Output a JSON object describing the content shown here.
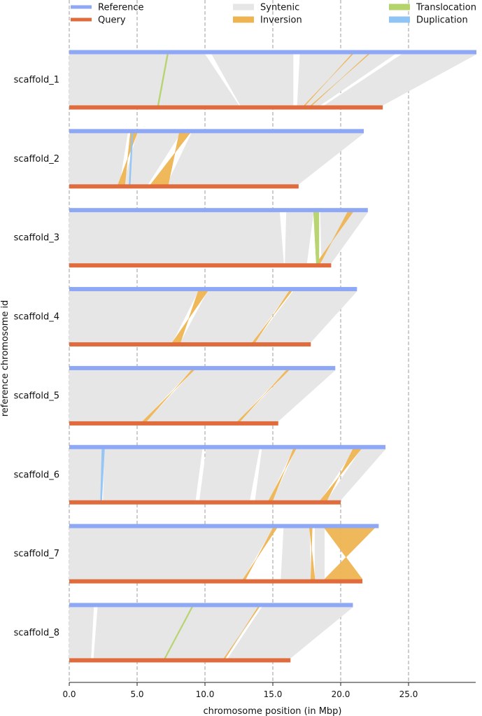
{
  "chart_data": {
    "type": "synteny",
    "xlabel": "chromosome position (in Mbp)",
    "ylabel": "reference chromosome id",
    "xlim": [
      0,
      30
    ],
    "x_ticks": [
      0,
      5,
      10,
      15,
      20,
      25
    ],
    "x_tick_labels": [
      "0.0",
      "5.0",
      "10.0",
      "15.0",
      "20.0",
      "25.0"
    ],
    "grid": "vertical dashed",
    "legend": {
      "placement": "top",
      "items": [
        {
          "label": "Reference",
          "color": "#8fa8f5",
          "kind": "line"
        },
        {
          "label": "Query",
          "color": "#e06b3c",
          "kind": "line"
        },
        {
          "label": "Syntenic",
          "color": "#e6e6e6",
          "kind": "patch"
        },
        {
          "label": "Inversion",
          "color": "#eeb452",
          "kind": "patch"
        },
        {
          "label": "Translocation",
          "color": "#b5d36b",
          "kind": "patch"
        },
        {
          "label": "Duplication",
          "color": "#90c4f5",
          "kind": "patch"
        }
      ]
    },
    "chromosomes": [
      {
        "id": "scaffold_1",
        "ref_length": 30.0,
        "query_length": 23.1,
        "syntenic": [
          [
            0,
            10,
            0,
            12.5
          ],
          [
            10.5,
            16.5,
            12.6,
            16.5
          ],
          [
            17,
            24,
            16.8,
            18.5
          ],
          [
            24.5,
            30.0,
            18.8,
            23.1
          ]
        ],
        "inversions": [
          [
            20.8,
            20.9,
            17.3,
            17.4
          ],
          [
            22.0,
            22.1,
            17.8,
            17.9
          ]
        ],
        "translocations": [
          [
            7.2,
            7.3,
            6.5,
            6.6
          ]
        ],
        "duplications": []
      },
      {
        "id": "scaffold_2",
        "ref_length": 21.7,
        "query_length": 16.9,
        "syntenic": [
          [
            0,
            4.3,
            0,
            3.7
          ],
          [
            5.0,
            8.2,
            4.0,
            5.8
          ],
          [
            9.0,
            21.7,
            7.2,
            16.9
          ]
        ],
        "inversions": [
          [
            4.5,
            5.0,
            3.6,
            4.1
          ],
          [
            8.1,
            8.9,
            6.0,
            7.3
          ]
        ],
        "translocations": [],
        "duplications": [
          [
            4.6,
            4.7,
            4.4,
            4.5
          ]
        ]
      },
      {
        "id": "scaffold_3",
        "ref_length": 22.0,
        "query_length": 19.3,
        "syntenic": [
          [
            0,
            15.5,
            0,
            15.8
          ],
          [
            16.0,
            18.0,
            15.9,
            17.5
          ],
          [
            18.5,
            22.0,
            18.6,
            19.3
          ]
        ],
        "inversions": [
          [
            20.5,
            20.9,
            18.2,
            18.5
          ]
        ],
        "translocations": [
          [
            18.0,
            18.4,
            18.2,
            18.4
          ]
        ],
        "duplications": []
      },
      {
        "id": "scaffold_4",
        "ref_length": 21.2,
        "query_length": 17.8,
        "syntenic": [
          [
            0,
            9.5,
            0,
            7.6
          ],
          [
            10.2,
            16.2,
            8.2,
            13.5
          ],
          [
            16.5,
            21.2,
            13.7,
            17.8
          ]
        ],
        "inversions": [
          [
            9.5,
            10.2,
            7.6,
            8.2
          ],
          [
            16.2,
            16.4,
            13.5,
            13.7
          ]
        ],
        "translocations": [],
        "duplications": []
      },
      {
        "id": "scaffold_5",
        "ref_length": 19.6,
        "query_length": 15.4,
        "syntenic": [
          [
            0,
            9.0,
            0,
            5.4
          ],
          [
            9.2,
            16.0,
            5.7,
            12.4
          ],
          [
            16.2,
            19.6,
            12.6,
            15.4
          ]
        ],
        "inversions": [
          [
            9.0,
            9.2,
            5.4,
            5.7
          ],
          [
            16.0,
            16.2,
            12.4,
            12.6
          ]
        ],
        "translocations": [],
        "duplications": []
      },
      {
        "id": "scaffold_6",
        "ref_length": 23.3,
        "query_length": 20.0,
        "syntenic": [
          [
            0,
            2.5,
            0,
            2.3
          ],
          [
            2.6,
            9.8,
            2.5,
            9.3
          ],
          [
            10.1,
            14.0,
            9.6,
            13.3
          ],
          [
            14.2,
            16.5,
            13.7,
            14.7
          ],
          [
            16.7,
            21.0,
            15.0,
            18.5
          ],
          [
            21.5,
            23.3,
            19.0,
            20.0
          ]
        ],
        "inversions": [
          [
            16.5,
            16.7,
            14.7,
            15.0
          ],
          [
            20.9,
            21.5,
            18.5,
            19.0
          ]
        ],
        "translocations": [],
        "duplications": [
          [
            2.4,
            2.6,
            2.3,
            2.4
          ]
        ]
      },
      {
        "id": "scaffold_7",
        "ref_length": 22.8,
        "query_length": 21.6,
        "syntenic": [
          [
            0,
            15.0,
            0,
            12.8
          ],
          [
            15.8,
            17.7,
            15.6,
            17.8
          ],
          [
            18.1,
            18.8,
            18.1,
            18.8
          ]
        ],
        "inversions": [
          [
            15.0,
            15.3,
            12.8,
            13.0
          ],
          [
            17.7,
            17.9,
            17.8,
            18.1
          ],
          [
            18.8,
            22.5,
            18.8,
            21.6
          ]
        ],
        "translocations": [],
        "duplications": []
      },
      {
        "id": "scaffold_8",
        "ref_length": 20.9,
        "query_length": 16.3,
        "syntenic": [
          [
            0,
            1.8,
            0,
            1.6
          ],
          [
            2.1,
            14.0,
            1.8,
            11.5
          ],
          [
            14.2,
            20.9,
            11.7,
            16.3
          ]
        ],
        "inversions": [
          [
            13.9,
            14.0,
            11.4,
            11.5
          ]
        ],
        "translocations": [
          [
            9.0,
            9.1,
            7.0,
            7.1
          ]
        ],
        "duplications": []
      }
    ]
  }
}
